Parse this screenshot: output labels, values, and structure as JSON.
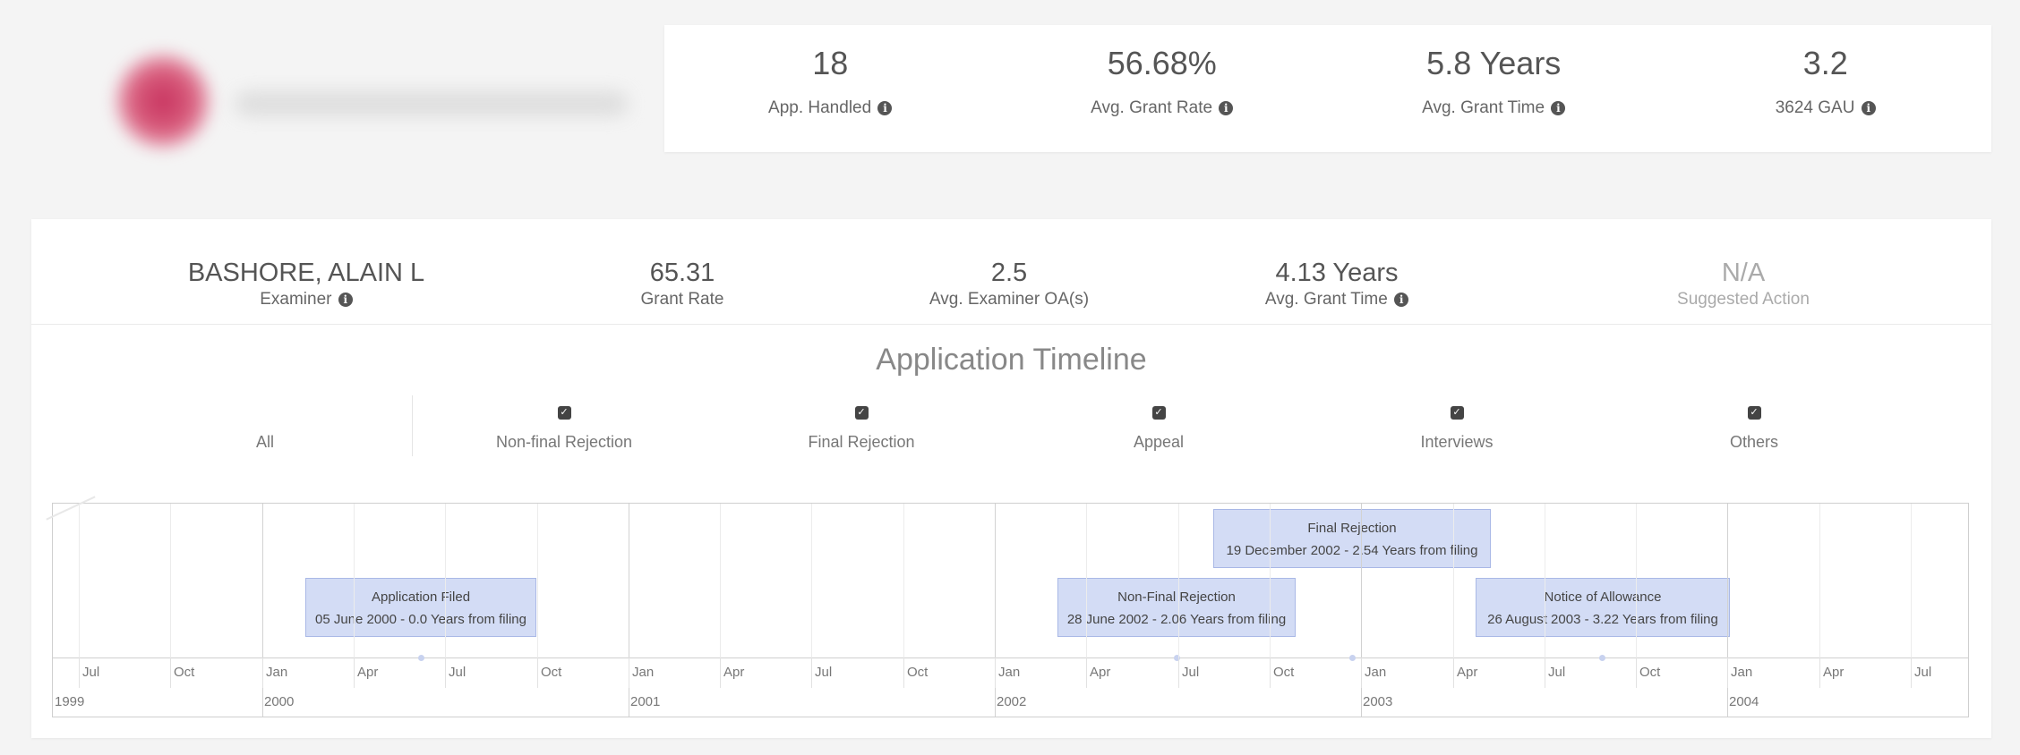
{
  "top_stats": [
    {
      "value": "18",
      "label": "App. Handled"
    },
    {
      "value": "56.68%",
      "label": "Avg. Grant Rate"
    },
    {
      "value": "5.8 Years",
      "label": "Avg. Grant Time"
    },
    {
      "value": "3.2",
      "label": "3624 GAU"
    }
  ],
  "examiner": {
    "name": "BASHORE, ALAIN L",
    "name_label": "Examiner",
    "grant_rate": "65.31",
    "grant_rate_label": "Grant Rate",
    "avg_oa": "2.5",
    "avg_oa_label": "Avg. Examiner OA(s)",
    "avg_grant_time": "4.13 Years",
    "avg_grant_time_label": "Avg. Grant Time",
    "suggested_action": "N/A",
    "suggested_action_label": "Suggested Action"
  },
  "timeline": {
    "title": "Application Timeline",
    "filters": [
      {
        "label": "All",
        "checked": false
      },
      {
        "label": "Non-final Rejection",
        "checked": true
      },
      {
        "label": "Final Rejection",
        "checked": true
      },
      {
        "label": "Appeal",
        "checked": true
      },
      {
        "label": "Interviews",
        "checked": true
      },
      {
        "label": "Others",
        "checked": true
      }
    ],
    "months": [
      "Jul",
      "Oct",
      "Jan",
      "Apr",
      "Jul",
      "Oct",
      "Jan",
      "Apr",
      "Jul",
      "Oct",
      "Jan",
      "Apr",
      "Jul",
      "Oct",
      "Jan",
      "Apr",
      "Jul",
      "Oct",
      "Jan",
      "Apr",
      "Jul"
    ],
    "years": [
      "1999",
      "2000",
      "2001",
      "2002",
      "2003",
      "2004"
    ],
    "events": [
      {
        "title": "Application Filed",
        "detail": "05 June 2000 - 0.0 Years from filing"
      },
      {
        "title": "Non-Final Rejection",
        "detail": "28 June 2002 - 2.06 Years from filing"
      },
      {
        "title": "Final Rejection",
        "detail": "19 December 2002 - 2.54 Years from filing"
      },
      {
        "title": "Notice of Allowance",
        "detail": "26 August 2003 - 3.22 Years from filing"
      }
    ]
  },
  "colors": {
    "event_fill": "#d3dcf5",
    "event_border": "#a9b8e6",
    "checkbox": "#444444"
  }
}
